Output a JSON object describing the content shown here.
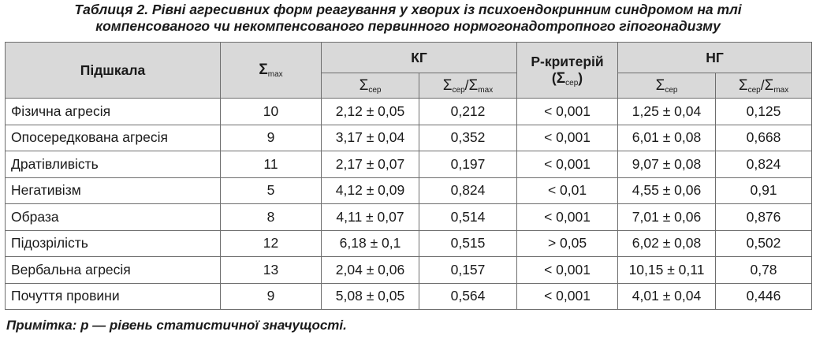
{
  "caption": {
    "line1": "Таблиця 2. Рівні агресивних форм реагування у хворих із психоендокринним синдромом на тлі",
    "line2": "компенсованого чи некомпенсованого первинного нормогонадотропного гіпогонадизму"
  },
  "header": {
    "subscale": "Підшкала",
    "sigma": "Σ",
    "max_sub": "max",
    "ser_sub": "сер",
    "slash": "/",
    "kg": "КГ",
    "p_label": "Р-критерій",
    "p_open": "(",
    "p_close": ")",
    "ng": "НГ"
  },
  "rows": [
    {
      "name": "Фізична агресія",
      "max": "10",
      "kg_ser": "2,12 ± 0,05",
      "kg_ratio": "0,212",
      "p": "< 0,001",
      "ng_ser": "1,25 ± 0,04",
      "ng_ratio": "0,125"
    },
    {
      "name": "Опосередкована агресія",
      "max": "9",
      "kg_ser": "3,17 ± 0,04",
      "kg_ratio": "0,352",
      "p": "< 0,001",
      "ng_ser": "6,01 ± 0,08",
      "ng_ratio": "0,668"
    },
    {
      "name": "Дратівливість",
      "max": "11",
      "kg_ser": "2,17 ± 0,07",
      "kg_ratio": "0,197",
      "p": "< 0,001",
      "ng_ser": "9,07 ± 0,08",
      "ng_ratio": "0,824"
    },
    {
      "name": "Негативізм",
      "max": "5",
      "kg_ser": "4,12 ± 0,09",
      "kg_ratio": "0,824",
      "p": "< 0,01",
      "ng_ser": "4,55 ± 0,06",
      "ng_ratio": "0,91"
    },
    {
      "name": "Образа",
      "max": "8",
      "kg_ser": "4,11 ± 0,07",
      "kg_ratio": "0,514",
      "p": "< 0,001",
      "ng_ser": "7,01 ± 0,06",
      "ng_ratio": "0,876"
    },
    {
      "name": "Підозрілість",
      "max": "12",
      "kg_ser": "6,18 ± 0,1",
      "kg_ratio": "0,515",
      "p": "> 0,05",
      "ng_ser": "6,02 ± 0,08",
      "ng_ratio": "0,502"
    },
    {
      "name": "Вербальна агресія",
      "max": "13",
      "kg_ser": "2,04 ± 0,06",
      "kg_ratio": "0,157",
      "p": "< 0,001",
      "ng_ser": "10,15 ± 0,11",
      "ng_ratio": "0,78"
    },
    {
      "name": "Почуття провини",
      "max": "9",
      "kg_ser": "5,08 ± 0,05",
      "kg_ratio": "0,564",
      "p": "< 0,001",
      "ng_ser": "4,01 ± 0,04",
      "ng_ratio": "0,446"
    }
  ],
  "note": "Примітка: р — рівень статистичної значущості."
}
